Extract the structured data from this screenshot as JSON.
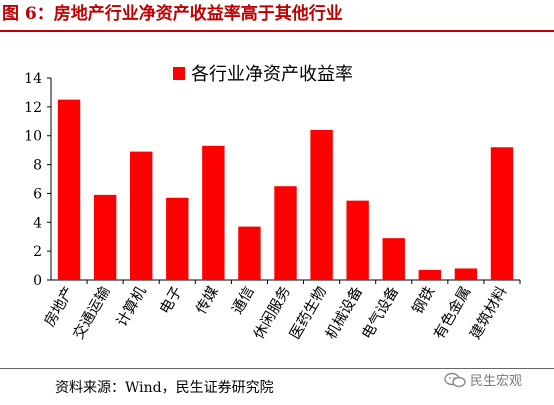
{
  "figure": {
    "title": "图 6：房地产行业净资产收益率高于其他行业",
    "source": "资料来源：Wind，民生证券研究院",
    "watermark": "民生宏观"
  },
  "colors": {
    "title": "#c00000",
    "bar": "#ff0000",
    "axis": "#000000"
  },
  "chart_data": {
    "type": "bar",
    "categories": [
      "房地产",
      "交通运输",
      "计算机",
      "电子",
      "传媒",
      "通信",
      "休闲服务",
      "医药生物",
      "机械设备",
      "电气设备",
      "钢铁",
      "有色金属",
      "建筑材料"
    ],
    "series": [
      {
        "name": "各行业净资产收益率",
        "values": [
          12.5,
          5.9,
          8.9,
          5.7,
          9.3,
          3.7,
          6.5,
          10.4,
          5.5,
          2.9,
          0.7,
          0.8,
          9.2
        ]
      }
    ],
    "ylim": [
      0,
      14
    ],
    "yticks": [
      0,
      2,
      4,
      6,
      8,
      10,
      12,
      14
    ],
    "grid": false,
    "legend": "top-center"
  }
}
